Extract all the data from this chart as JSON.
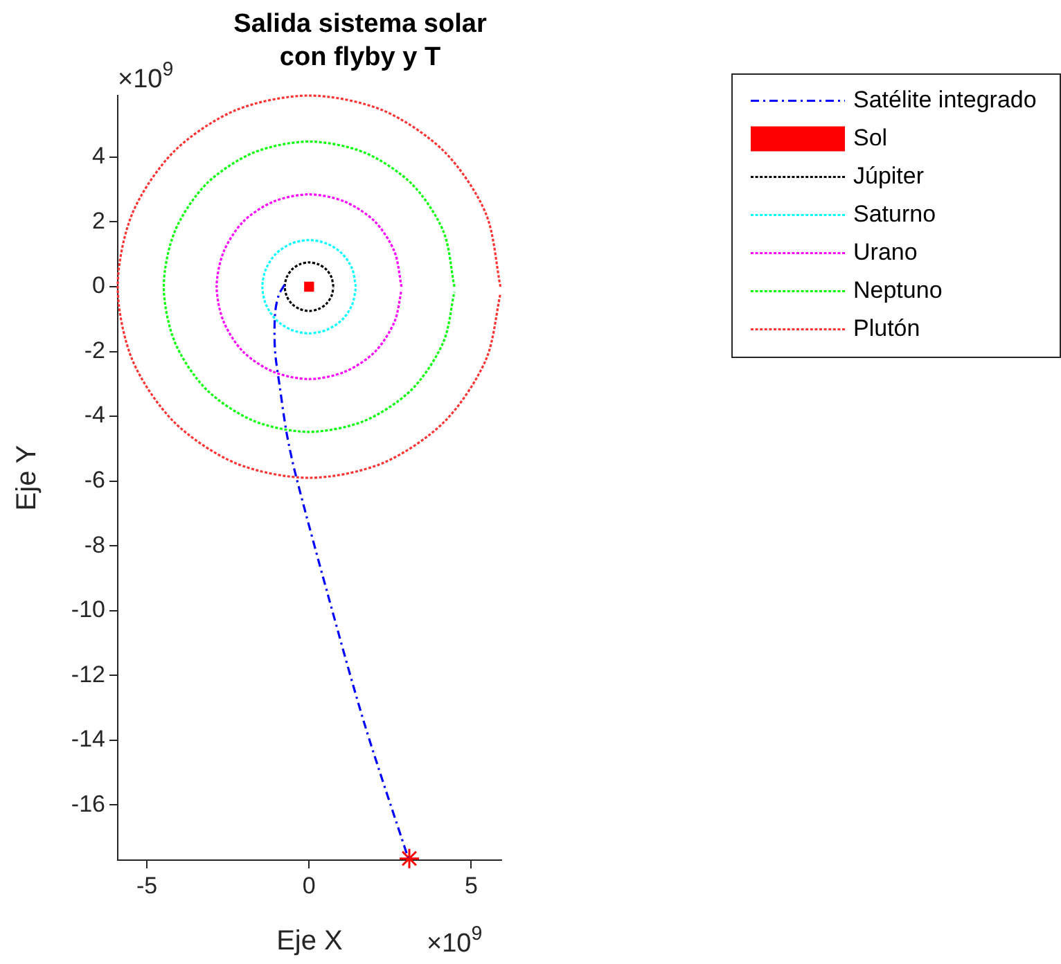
{
  "chart_data": {
    "type": "line",
    "title": "Salida sistema solar con flyby y T",
    "xlabel": "Eje X",
    "ylabel": "Eje Y",
    "xlim": [
      -5.9,
      5.93
    ],
    "ylim": [
      -17.7,
      5.9
    ],
    "xticks": [
      -5,
      0,
      5
    ],
    "yticks": [
      -16,
      -14,
      -12,
      -10,
      -8,
      -6,
      -4,
      -2,
      0,
      2,
      4
    ],
    "grid": false,
    "legend": "top right",
    "annotations": [
      "×10$^{9}$",
      "×10$^{9}$"
    ],
    "series": [
      {
        "name": "Satélite integrado",
        "color": "#0000ff",
        "line_style": "dashed",
        "marker": "none",
        "x": [
          -0.76,
          -0.94,
          -1.05,
          -1.05,
          -0.9,
          -0.69,
          -0.41,
          0.58,
          1.71,
          3.05
        ],
        "values": [
          0.06,
          -0.27,
          -0.84,
          -1.98,
          -3.11,
          -4.53,
          -5.82,
          -9.51,
          -13.5,
          -17.62
        ]
      },
      {
        "name": "Sol",
        "color": "#ff0000",
        "type": "scatter",
        "marker": "square",
        "x": [
          0
        ],
        "values": [
          0
        ]
      },
      {
        "name": "Júpiter",
        "color": "#000000",
        "line_style": "dotted",
        "marker": "none",
        "x": [
          0.75,
          0.69,
          0.53,
          0.29,
          0,
          -0.29,
          -0.53,
          -0.69,
          -0.75,
          -0.69,
          -0.53,
          -0.29,
          0,
          0.29,
          0.53,
          0.69,
          0.75
        ],
        "values": [
          0,
          0.29,
          0.53,
          0.69,
          0.75,
          0.69,
          0.53,
          0.29,
          0,
          -0.29,
          -0.53,
          -0.69,
          -0.75,
          -0.69,
          -0.53,
          -0.29,
          -0.03
        ]
      },
      {
        "name": "Saturno",
        "color": "#00ffff",
        "line_style": "dotted",
        "marker": "none",
        "x": [
          1.44,
          1.33,
          1.02,
          0.55,
          0,
          -0.55,
          -1.02,
          -1.33,
          -1.44,
          -1.33,
          -1.02,
          -0.55,
          0,
          0.55,
          1.02,
          1.33,
          1.44
        ],
        "values": [
          0,
          0.55,
          1.02,
          1.33,
          1.44,
          1.33,
          1.02,
          0.55,
          0,
          -0.55,
          -1.02,
          -1.33,
          -1.44,
          -1.33,
          -1.02,
          -0.55,
          -0.05
        ]
      },
      {
        "name": "Urano",
        "color": "#ff00ff",
        "line_style": "dotted",
        "marker": "none",
        "x": [
          2.85,
          2.63,
          2.02,
          1.09,
          0,
          -1.09,
          -2.02,
          -2.63,
          -2.85,
          -2.63,
          -2.02,
          -1.09,
          0,
          1.09,
          2.02,
          2.63,
          2.85
        ],
        "values": [
          0,
          1.09,
          2.02,
          2.63,
          2.85,
          2.63,
          2.02,
          1.09,
          0,
          -1.09,
          -2.02,
          -2.63,
          -2.85,
          -2.63,
          -2.02,
          -1.09,
          -0.1
        ]
      },
      {
        "name": "Neptuno",
        "color": "#00ff00",
        "line_style": "dotted",
        "marker": "none",
        "x": [
          4.48,
          4.14,
          3.17,
          1.71,
          0,
          -1.71,
          -3.17,
          -4.14,
          -4.48,
          -4.14,
          -3.17,
          -1.71,
          0,
          1.71,
          3.17,
          4.14,
          4.48
        ],
        "values": [
          0,
          1.71,
          3.17,
          4.14,
          4.48,
          4.14,
          3.17,
          1.71,
          0,
          -1.71,
          -3.17,
          -4.14,
          -4.48,
          -4.14,
          -3.17,
          -1.71,
          -0.16
        ]
      },
      {
        "name": "Plutón",
        "color": "#ff3333",
        "line_style": "dotted",
        "marker": "none",
        "x": [
          5.9,
          5.45,
          4.17,
          2.26,
          0,
          -2.26,
          -4.17,
          -5.45,
          -5.9,
          -5.45,
          -4.17,
          -2.26,
          0,
          2.26,
          4.17,
          5.45,
          5.9
        ],
        "values": [
          0,
          2.26,
          4.17,
          5.45,
          5.9,
          5.45,
          4.17,
          2.26,
          0,
          -2.26,
          -4.17,
          -5.45,
          -5.9,
          -5.45,
          -4.17,
          -2.26,
          -0.21
        ]
      },
      {
        "color": "#ff0000",
        "type": "scatter",
        "marker": "cross",
        "x": [
          3.09
        ],
        "values": [
          -17.65
        ]
      }
    ]
  }
}
